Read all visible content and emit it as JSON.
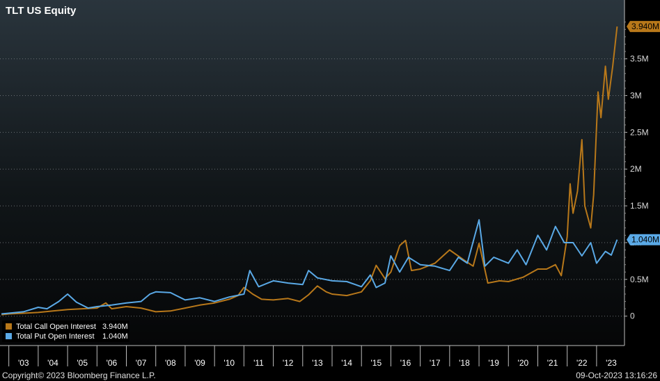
{
  "chart_data": {
    "type": "line",
    "title": "TLT US Equity",
    "x_tick_labels": [
      "'03",
      "'04",
      "'05",
      "'06",
      "'07",
      "'08",
      "'09",
      "'10",
      "'11",
      "'12",
      "'13",
      "'14",
      "'15",
      "'16",
      "'17",
      "'18",
      "'19",
      "'20",
      "'21",
      "'22",
      "'23"
    ],
    "y_tick_labels": [
      "0",
      "0.5M",
      "1M",
      "1.5M",
      "2M",
      "2.5M",
      "3M",
      "3.5M"
    ],
    "y_tick_values": [
      0,
      500000,
      1000000,
      1500000,
      2000000,
      2500000,
      3000000,
      3500000
    ],
    "ylim": [
      -400000,
      4300000
    ],
    "xlim": [
      2002.7,
      2023.95
    ],
    "grid": true,
    "legend_position": "bottom-left",
    "series": [
      {
        "name": "Total Call Open Interest",
        "color": "#b8781a",
        "last_value": 3940000,
        "last_label": "3.940M",
        "points": [
          [
            2002.75,
            20000
          ],
          [
            2003.0,
            30000
          ],
          [
            2003.5,
            40000
          ],
          [
            2004.0,
            50000
          ],
          [
            2004.5,
            70000
          ],
          [
            2005.0,
            90000
          ],
          [
            2005.5,
            100000
          ],
          [
            2006.0,
            110000
          ],
          [
            2006.3,
            180000
          ],
          [
            2006.5,
            100000
          ],
          [
            2007.0,
            130000
          ],
          [
            2007.5,
            110000
          ],
          [
            2008.0,
            60000
          ],
          [
            2008.5,
            70000
          ],
          [
            2009.0,
            110000
          ],
          [
            2009.5,
            150000
          ],
          [
            2010.0,
            180000
          ],
          [
            2010.5,
            230000
          ],
          [
            2010.8,
            280000
          ],
          [
            2011.0,
            390000
          ],
          [
            2011.3,
            300000
          ],
          [
            2011.6,
            230000
          ],
          [
            2012.0,
            220000
          ],
          [
            2012.5,
            240000
          ],
          [
            2012.9,
            200000
          ],
          [
            2013.2,
            290000
          ],
          [
            2013.5,
            410000
          ],
          [
            2013.8,
            330000
          ],
          [
            2014.0,
            300000
          ],
          [
            2014.5,
            280000
          ],
          [
            2015.0,
            330000
          ],
          [
            2015.3,
            480000
          ],
          [
            2015.5,
            690000
          ],
          [
            2015.8,
            510000
          ],
          [
            2016.0,
            600000
          ],
          [
            2016.3,
            960000
          ],
          [
            2016.5,
            1030000
          ],
          [
            2016.7,
            620000
          ],
          [
            2017.0,
            640000
          ],
          [
            2017.5,
            720000
          ],
          [
            2018.0,
            900000
          ],
          [
            2018.5,
            760000
          ],
          [
            2018.8,
            680000
          ],
          [
            2019.0,
            990000
          ],
          [
            2019.3,
            450000
          ],
          [
            2019.7,
            480000
          ],
          [
            2020.0,
            470000
          ],
          [
            2020.5,
            530000
          ],
          [
            2021.0,
            640000
          ],
          [
            2021.3,
            640000
          ],
          [
            2021.6,
            700000
          ],
          [
            2021.8,
            550000
          ],
          [
            2022.0,
            1080000
          ],
          [
            2022.1,
            1800000
          ],
          [
            2022.2,
            1400000
          ],
          [
            2022.35,
            1700000
          ],
          [
            2022.5,
            2400000
          ],
          [
            2022.6,
            1500000
          ],
          [
            2022.8,
            1200000
          ],
          [
            2022.9,
            1650000
          ],
          [
            2023.05,
            3050000
          ],
          [
            2023.15,
            2700000
          ],
          [
            2023.3,
            3400000
          ],
          [
            2023.4,
            2950000
          ],
          [
            2023.55,
            3400000
          ],
          [
            2023.7,
            3940000
          ]
        ]
      },
      {
        "name": "Total Put Open Interest",
        "color": "#5aa9e6",
        "last_value": 1040000,
        "last_label": "1.040M",
        "points": [
          [
            2002.75,
            30000
          ],
          [
            2003.0,
            40000
          ],
          [
            2003.5,
            60000
          ],
          [
            2004.0,
            120000
          ],
          [
            2004.3,
            100000
          ],
          [
            2004.7,
            200000
          ],
          [
            2005.0,
            300000
          ],
          [
            2005.3,
            190000
          ],
          [
            2005.7,
            110000
          ],
          [
            2006.0,
            130000
          ],
          [
            2006.5,
            150000
          ],
          [
            2007.0,
            180000
          ],
          [
            2007.5,
            200000
          ],
          [
            2007.8,
            300000
          ],
          [
            2008.0,
            330000
          ],
          [
            2008.5,
            320000
          ],
          [
            2009.0,
            220000
          ],
          [
            2009.5,
            250000
          ],
          [
            2010.0,
            200000
          ],
          [
            2010.5,
            260000
          ],
          [
            2011.0,
            300000
          ],
          [
            2011.2,
            620000
          ],
          [
            2011.5,
            400000
          ],
          [
            2012.0,
            480000
          ],
          [
            2012.5,
            450000
          ],
          [
            2013.0,
            430000
          ],
          [
            2013.2,
            620000
          ],
          [
            2013.5,
            520000
          ],
          [
            2014.0,
            480000
          ],
          [
            2014.5,
            470000
          ],
          [
            2015.0,
            400000
          ],
          [
            2015.3,
            560000
          ],
          [
            2015.5,
            390000
          ],
          [
            2015.8,
            450000
          ],
          [
            2016.0,
            820000
          ],
          [
            2016.3,
            600000
          ],
          [
            2016.6,
            800000
          ],
          [
            2017.0,
            700000
          ],
          [
            2017.5,
            680000
          ],
          [
            2018.0,
            620000
          ],
          [
            2018.3,
            800000
          ],
          [
            2018.6,
            720000
          ],
          [
            2019.0,
            1310000
          ],
          [
            2019.2,
            680000
          ],
          [
            2019.5,
            800000
          ],
          [
            2020.0,
            720000
          ],
          [
            2020.3,
            900000
          ],
          [
            2020.6,
            700000
          ],
          [
            2021.0,
            1100000
          ],
          [
            2021.3,
            900000
          ],
          [
            2021.6,
            1220000
          ],
          [
            2021.9,
            1000000
          ],
          [
            2022.2,
            1000000
          ],
          [
            2022.5,
            820000
          ],
          [
            2022.8,
            1000000
          ],
          [
            2023.0,
            720000
          ],
          [
            2023.3,
            880000
          ],
          [
            2023.5,
            830000
          ],
          [
            2023.7,
            1040000
          ]
        ]
      }
    ]
  },
  "legend": [
    {
      "label": "Total Call Open Interest",
      "value": "3.940M"
    },
    {
      "label": "Total Put Open Interest",
      "value": "1.040M"
    }
  ],
  "footer": {
    "copyright": "Copyright© 2023 Bloomberg Finance L.P.",
    "timestamp": "09-Oct-2023 13:16:26"
  }
}
